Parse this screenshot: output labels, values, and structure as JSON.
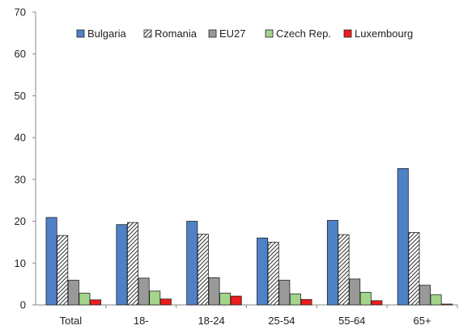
{
  "chart_data": {
    "type": "bar",
    "title": "",
    "xlabel": "",
    "ylabel": "",
    "ylim": [
      0,
      70
    ],
    "yticks": [
      0,
      10,
      20,
      30,
      40,
      50,
      60,
      70
    ],
    "grid": false,
    "legend_position": "top",
    "categories": [
      "Total",
      "18-",
      "18-24",
      "25-54",
      "55-64",
      "65+"
    ],
    "series": [
      {
        "name": "Bulgaria",
        "color": "#4f81c7",
        "pattern": "solid",
        "values": [
          20.9,
          19.2,
          20.0,
          16.0,
          20.2,
          32.6
        ]
      },
      {
        "name": "Romania",
        "color": "#ffffff",
        "pattern": "hatch",
        "values": [
          16.6,
          19.7,
          16.9,
          15.0,
          16.8,
          17.3
        ]
      },
      {
        "name": "EU27",
        "color": "#999999",
        "pattern": "solid",
        "values": [
          5.9,
          6.4,
          6.5,
          5.9,
          6.2,
          4.7
        ]
      },
      {
        "name": "Czech Rep.",
        "color": "#a3d48b",
        "pattern": "solid",
        "values": [
          2.8,
          3.3,
          2.8,
          2.6,
          3.0,
          2.4
        ]
      },
      {
        "name": "Luxembourg",
        "color": "#ee1c1c",
        "pattern": "solid",
        "values": [
          1.2,
          1.4,
          2.1,
          1.3,
          1.0,
          0.2
        ]
      }
    ]
  }
}
